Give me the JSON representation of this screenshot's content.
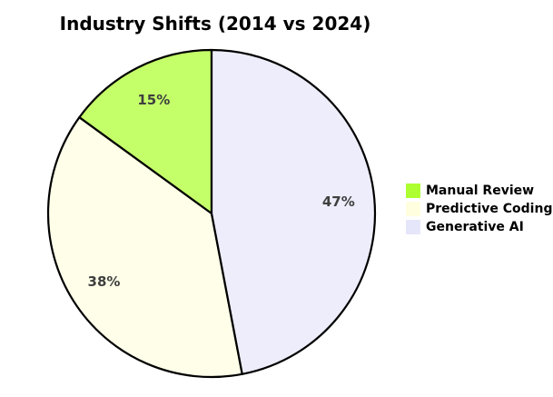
{
  "chart_data": {
    "type": "pie",
    "title": "Industry Shifts (2014 vs 2024)",
    "labels": [
      "Manual Review",
      "Predictive Coding",
      "Generative AI"
    ],
    "values": [
      15,
      38,
      47
    ],
    "pct_labels": [
      "15%",
      "38%",
      "47%"
    ],
    "colors": [
      "#adff2f",
      "#ffffe0",
      "#e6e6fa"
    ],
    "fill_opacity": 0.72,
    "edge_color": "#000000",
    "edge_width": 2.2,
    "pct_label_color": "#3f3f3f",
    "start_angle": 90,
    "direction": "counterclockwise",
    "pct_distance": 0.78,
    "legend_position": "center right",
    "background_color": "#ffffff"
  }
}
